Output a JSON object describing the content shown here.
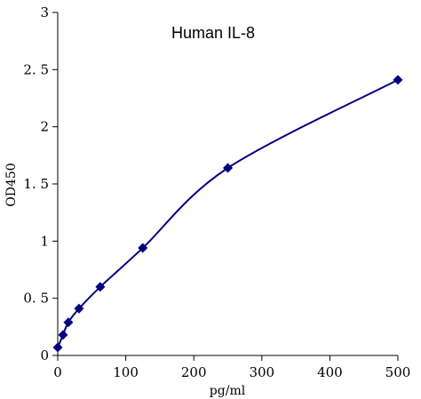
{
  "chart_data": {
    "type": "line",
    "title": "Human IL-8",
    "xlabel": "pg/ml",
    "ylabel": "OD450",
    "xlim": [
      0,
      500
    ],
    "ylim": [
      0,
      3
    ],
    "x_ticks": [
      0,
      100,
      200,
      300,
      400,
      500
    ],
    "y_ticks": [
      0,
      0.5,
      1,
      1.5,
      2,
      2.5,
      3
    ],
    "y_tick_labels": [
      "0",
      "0. 5",
      "1",
      "1. 5",
      "2",
      "2. 5",
      "3"
    ],
    "grid": false,
    "legend": "none",
    "series": [
      {
        "x": [
          0,
          7.8,
          15.6,
          31.25,
          62.5,
          125,
          250,
          500
        ],
        "values": [
          0.07,
          0.18,
          0.29,
          0.41,
          0.6,
          0.94,
          1.64,
          2.41
        ]
      }
    ],
    "colors": {
      "line": "#000080",
      "marker": "#000080",
      "axis": "#000000"
    }
  }
}
